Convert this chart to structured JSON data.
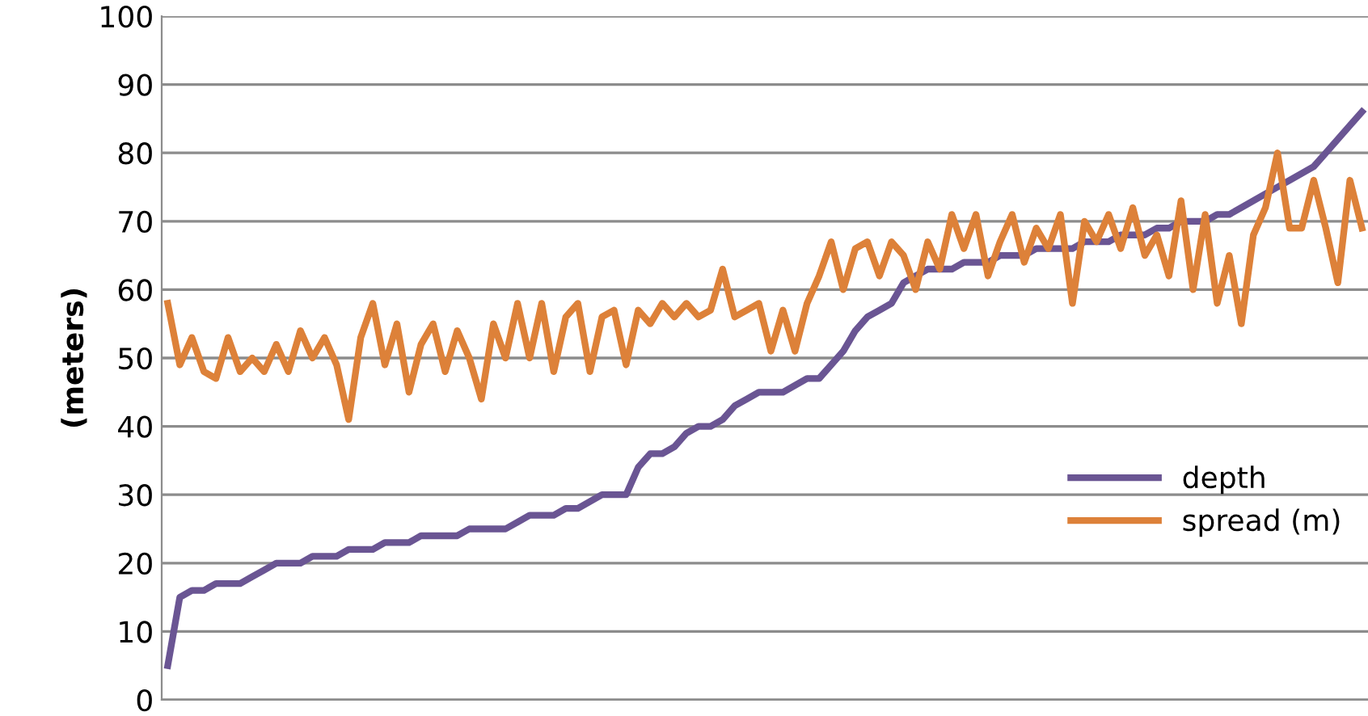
{
  "chart_data": {
    "type": "line",
    "ylabel": "(meters)",
    "categories": [
      null,
      null,
      null,
      null,
      null,
      null,
      null,
      null,
      null,
      null,
      null,
      null,
      null,
      null,
      null,
      null,
      null,
      null,
      null,
      null,
      null,
      null,
      null,
      null,
      null,
      null,
      null,
      null,
      null,
      null,
      null,
      null,
      null,
      null,
      null,
      null,
      null,
      null,
      null,
      null,
      null,
      null,
      null,
      null,
      null,
      null,
      null,
      null,
      null,
      null,
      null,
      null,
      null,
      null,
      null,
      null,
      null,
      null,
      null,
      null,
      null,
      null,
      null,
      null,
      null,
      null,
      null,
      null,
      null,
      null,
      null,
      null,
      null,
      null,
      null,
      null,
      null,
      null,
      null,
      null,
      null,
      null,
      null,
      null,
      null,
      null,
      null,
      null,
      null,
      null,
      null,
      null,
      null,
      null,
      null,
      null,
      null,
      null,
      null,
      null
    ],
    "series": [
      {
        "name": "depth",
        "color": "#6a5593",
        "values": [
          5,
          15,
          16,
          16,
          17,
          17,
          17,
          18,
          19,
          20,
          20,
          20,
          21,
          21,
          21,
          22,
          22,
          22,
          23,
          23,
          23,
          24,
          24,
          24,
          24,
          25,
          25,
          25,
          25,
          26,
          27,
          27,
          27,
          28,
          28,
          29,
          30,
          30,
          30,
          34,
          36,
          36,
          37,
          39,
          40,
          40,
          41,
          43,
          44,
          45,
          45,
          45,
          46,
          47,
          47,
          49,
          51,
          54,
          56,
          57,
          58,
          61,
          62,
          63,
          63,
          63,
          64,
          64,
          64,
          65,
          65,
          65,
          66,
          66,
          66,
          66,
          67,
          67,
          67,
          68,
          68,
          68,
          69,
          69,
          70,
          70,
          70,
          71,
          71,
          72,
          73,
          74,
          75,
          76,
          77,
          78,
          80,
          82,
          84,
          86
        ]
      },
      {
        "name": "spread (m)",
        "color": "#dd8139",
        "values": [
          58,
          49,
          53,
          48,
          47,
          53,
          48,
          50,
          48,
          52,
          48,
          54,
          50,
          53,
          49,
          41,
          53,
          58,
          49,
          55,
          45,
          52,
          55,
          48,
          54,
          50,
          44,
          55,
          50,
          58,
          50,
          58,
          48,
          56,
          58,
          48,
          56,
          57,
          49,
          57,
          55,
          58,
          56,
          58,
          56,
          57,
          63,
          56,
          57,
          58,
          51,
          57,
          51,
          58,
          62,
          67,
          60,
          66,
          67,
          62,
          67,
          65,
          60,
          67,
          63,
          71,
          66,
          71,
          62,
          67,
          71,
          64,
          69,
          66,
          71,
          58,
          70,
          67,
          71,
          66,
          72,
          65,
          68,
          62,
          73,
          60,
          71,
          58,
          65,
          55,
          68,
          72,
          80,
          69,
          69,
          76,
          69,
          61,
          76,
          69
        ]
      }
    ],
    "ylim": [
      0,
      100
    ],
    "yticks": [
      0,
      10,
      20,
      30,
      40,
      50,
      60,
      70,
      80,
      90,
      100
    ],
    "grid": "y",
    "legend": "bottom right",
    "line_style": "solid",
    "marker": "none"
  }
}
